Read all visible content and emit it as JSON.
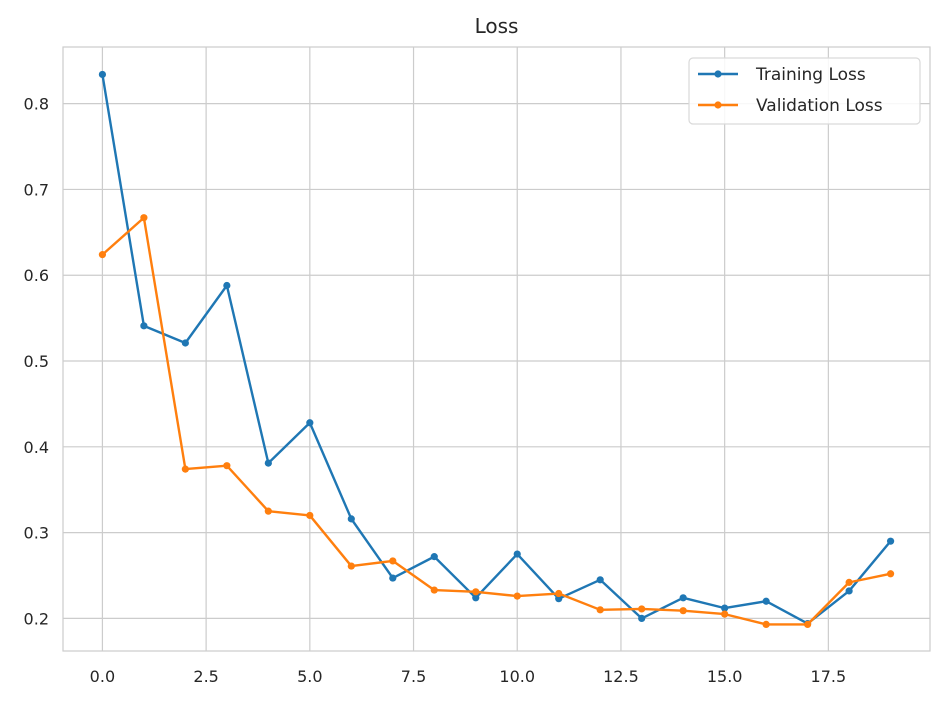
{
  "chart_data": {
    "type": "line",
    "title": "Loss",
    "xlabel": "",
    "ylabel": "",
    "xlim": [
      -0.95,
      19.95
    ],
    "ylim": [
      0.162,
      0.866
    ],
    "x_ticks": [
      0.0,
      2.5,
      5.0,
      7.5,
      10.0,
      12.5,
      15.0,
      17.5
    ],
    "x_tick_labels": [
      "0.0",
      "2.5",
      "5.0",
      "7.5",
      "10.0",
      "12.5",
      "15.0",
      "17.5"
    ],
    "y_ticks": [
      0.2,
      0.3,
      0.4,
      0.5,
      0.6,
      0.7,
      0.8
    ],
    "y_tick_labels": [
      "0.2",
      "0.3",
      "0.4",
      "0.5",
      "0.6",
      "0.7",
      "0.8"
    ],
    "grid": true,
    "legend_position": "top-right",
    "x": [
      0,
      1,
      2,
      3,
      4,
      5,
      6,
      7,
      8,
      9,
      10,
      11,
      12,
      13,
      14,
      15,
      16,
      17,
      18,
      19
    ],
    "series": [
      {
        "name": "Training Loss",
        "color": "#1f77b4",
        "values": [
          0.834,
          0.541,
          0.521,
          0.588,
          0.381,
          0.428,
          0.316,
          0.247,
          0.272,
          0.224,
          0.275,
          0.223,
          0.245,
          0.2,
          0.224,
          0.212,
          0.22,
          0.194,
          0.232,
          0.29
        ]
      },
      {
        "name": "Validation Loss",
        "color": "#ff7f0e",
        "values": [
          0.624,
          0.667,
          0.374,
          0.378,
          0.325,
          0.32,
          0.261,
          0.267,
          0.233,
          0.231,
          0.226,
          0.229,
          0.21,
          0.211,
          0.209,
          0.205,
          0.193,
          0.193,
          0.242,
          0.252
        ]
      }
    ]
  }
}
